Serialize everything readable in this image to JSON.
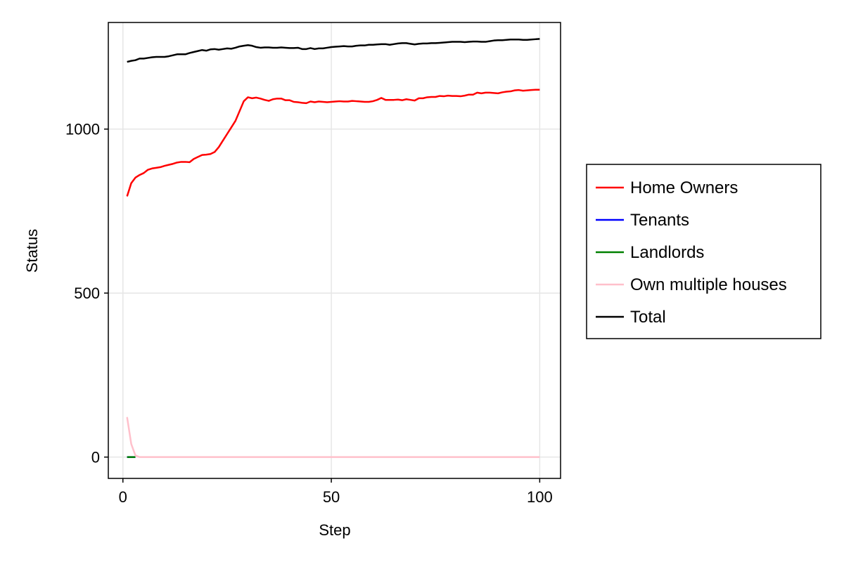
{
  "chart_data": {
    "type": "line",
    "title": "",
    "xlabel": "Step",
    "ylabel": "Status",
    "xlim": [
      -3.5,
      105
    ],
    "ylim": [
      -65,
      1325
    ],
    "xticks": [
      0,
      50,
      100
    ],
    "yticks": [
      0,
      500,
      1000
    ],
    "grid": true,
    "legend_position": "right",
    "series": [
      {
        "name": "Home Owners",
        "color": "#ff0000",
        "x": [
          1,
          2,
          3,
          4,
          5,
          6,
          7,
          8,
          9,
          10,
          11,
          12,
          13,
          14,
          15,
          16,
          17,
          18,
          19,
          20,
          21,
          22,
          23,
          24,
          25,
          26,
          27,
          28,
          29,
          30,
          31,
          32,
          33,
          34,
          35,
          36,
          37,
          38,
          39,
          40,
          41,
          42,
          43,
          44,
          45,
          46,
          47,
          48,
          49,
          50,
          51,
          52,
          53,
          54,
          55,
          56,
          57,
          58,
          59,
          60,
          61,
          62,
          63,
          64,
          65,
          66,
          67,
          68,
          69,
          70,
          71,
          72,
          73,
          74,
          75,
          76,
          77,
          78,
          79,
          80,
          81,
          82,
          83,
          84,
          85,
          86,
          87,
          88,
          89,
          90,
          91,
          92,
          93,
          94,
          95,
          96,
          97,
          98,
          99,
          100
        ],
        "y": [
          795,
          835,
          852,
          860,
          866,
          876,
          880,
          882,
          884,
          888,
          891,
          894,
          898,
          900,
          900,
          899,
          909,
          915,
          921,
          922,
          924,
          930,
          945,
          965,
          985,
          1005,
          1025,
          1055,
          1085,
          1097,
          1094,
          1096,
          1093,
          1089,
          1086,
          1091,
          1093,
          1093,
          1088,
          1088,
          1083,
          1082,
          1080,
          1079,
          1084,
          1082,
          1084,
          1083,
          1082,
          1083,
          1084,
          1085,
          1084,
          1084,
          1086,
          1085,
          1084,
          1083,
          1083,
          1085,
          1089,
          1095,
          1089,
          1089,
          1089,
          1090,
          1088,
          1091,
          1089,
          1087,
          1094,
          1094,
          1097,
          1098,
          1098,
          1101,
          1100,
          1102,
          1101,
          1101,
          1100,
          1102,
          1105,
          1105,
          1111,
          1109,
          1111,
          1111,
          1110,
          1109,
          1112,
          1114,
          1115,
          1118,
          1119,
          1117,
          1118,
          1119,
          1120,
          1120
        ]
      },
      {
        "name": "Tenants",
        "color": "#0000ff",
        "x": [
          1,
          2,
          3
        ],
        "y": [
          0,
          0,
          0
        ]
      },
      {
        "name": "Landlords",
        "color": "#008000",
        "x": [
          1,
          2,
          3
        ],
        "y": [
          0,
          0,
          0
        ]
      },
      {
        "name": "Own multiple houses",
        "color": "#ffc0cb",
        "x": [
          1,
          2,
          3,
          4,
          5,
          10,
          20,
          30,
          40,
          50,
          60,
          70,
          80,
          90,
          100
        ],
        "y": [
          122,
          40,
          5,
          0,
          0,
          0,
          0,
          0,
          0,
          0,
          0,
          0,
          0,
          0,
          0
        ]
      },
      {
        "name": "Total",
        "color": "#000000",
        "x": [
          1,
          2,
          3,
          4,
          5,
          6,
          7,
          8,
          9,
          10,
          11,
          12,
          13,
          14,
          15,
          16,
          17,
          18,
          19,
          20,
          21,
          22,
          23,
          24,
          25,
          26,
          27,
          28,
          29,
          30,
          31,
          32,
          33,
          34,
          35,
          36,
          37,
          38,
          39,
          40,
          41,
          42,
          43,
          44,
          45,
          46,
          47,
          48,
          49,
          50,
          51,
          52,
          53,
          54,
          55,
          56,
          57,
          58,
          59,
          60,
          61,
          62,
          63,
          64,
          65,
          66,
          67,
          68,
          69,
          70,
          71,
          72,
          73,
          74,
          75,
          76,
          77,
          78,
          79,
          80,
          81,
          82,
          83,
          84,
          85,
          86,
          87,
          88,
          89,
          90,
          91,
          92,
          93,
          94,
          95,
          96,
          97,
          98,
          99,
          100
        ],
        "y": [
          1205,
          1208,
          1210,
          1215,
          1215,
          1217,
          1219,
          1220,
          1220,
          1220,
          1222,
          1225,
          1228,
          1228,
          1228,
          1232,
          1235,
          1238,
          1241,
          1239,
          1243,
          1244,
          1242,
          1244,
          1246,
          1245,
          1248,
          1252,
          1254,
          1256,
          1254,
          1250,
          1248,
          1249,
          1249,
          1248,
          1248,
          1249,
          1248,
          1247,
          1247,
          1248,
          1244,
          1244,
          1247,
          1244,
          1246,
          1246,
          1248,
          1250,
          1251,
          1252,
          1253,
          1252,
          1252,
          1254,
          1255,
          1255,
          1257,
          1257,
          1258,
          1259,
          1259,
          1257,
          1259,
          1261,
          1262,
          1262,
          1260,
          1258,
          1260,
          1261,
          1261,
          1262,
          1262,
          1263,
          1264,
          1265,
          1266,
          1266,
          1266,
          1265,
          1266,
          1267,
          1267,
          1266,
          1266,
          1268,
          1270,
          1271,
          1271,
          1272,
          1273,
          1273,
          1273,
          1272,
          1272,
          1273,
          1274,
          1275
        ]
      }
    ]
  }
}
